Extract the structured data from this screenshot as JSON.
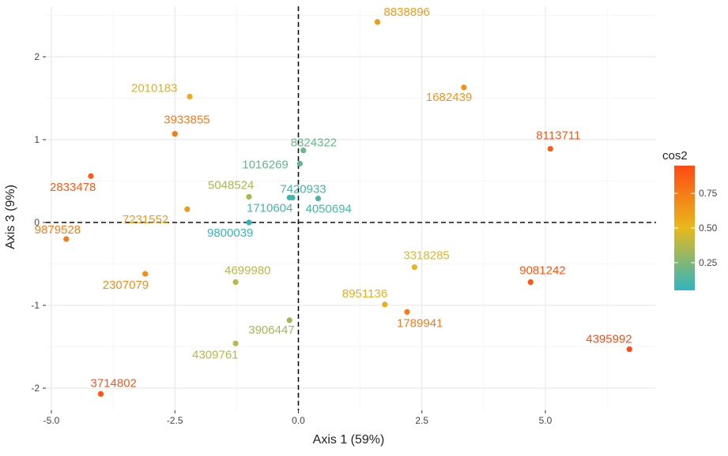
{
  "chart_data": {
    "type": "scatter",
    "title": "",
    "xlabel": "Axis 1 (59%)",
    "ylabel": "Axis 3 (9%)",
    "xlim": [
      -5.0,
      7.0
    ],
    "ylim": [
      -2.2,
      2.55
    ],
    "x_ticks": [
      -5.0,
      -2.5,
      0.0,
      2.5,
      5.0
    ],
    "x_tick_labels": [
      "-5.0",
      "-2.5",
      "0.0",
      "2.5",
      "5.0"
    ],
    "y_ticks": [
      -2,
      -1,
      0,
      1,
      2
    ],
    "y_tick_labels": [
      "-2",
      "-1",
      "0",
      "1",
      "2"
    ],
    "grid": true,
    "reference_lines": {
      "x": 0,
      "y": 0,
      "style": "dashed"
    },
    "color_scale": {
      "title": "cos2",
      "ticks": [
        0.25,
        0.5,
        0.75
      ],
      "tick_labels": [
        "0.25",
        "0.50",
        "0.75"
      ],
      "colors": [
        "#2eb5bf",
        "#e8b91c",
        "#ff4a14"
      ],
      "position": "right"
    },
    "points": [
      {
        "label": "8838896",
        "x": 1.6,
        "y": 2.42,
        "cos2": 0.62
      },
      {
        "label": "1682439",
        "x": 3.35,
        "y": 1.63,
        "cos2": 0.65
      },
      {
        "label": "2010183",
        "x": -2.2,
        "y": 1.52,
        "cos2": 0.55
      },
      {
        "label": "3933855",
        "x": -2.5,
        "y": 1.07,
        "cos2": 0.75
      },
      {
        "label": "8113711",
        "x": 5.1,
        "y": 0.89,
        "cos2": 0.88
      },
      {
        "label": "8324322",
        "x": 0.1,
        "y": 0.87,
        "cos2": 0.2
      },
      {
        "label": "1016269",
        "x": 0.03,
        "y": 0.71,
        "cos2": 0.18
      },
      {
        "label": "2833478",
        "x": -4.2,
        "y": 0.56,
        "cos2": 0.88
      },
      {
        "label": "5048524",
        "x": -1.0,
        "y": 0.31,
        "cos2": 0.35
      },
      {
        "label": "7420933",
        "x": -0.18,
        "y": 0.3,
        "cos2": 0.1
      },
      {
        "label": "1710604",
        "x": -0.12,
        "y": 0.3,
        "cos2": 0.1
      },
      {
        "label": "4050694",
        "x": 0.4,
        "y": 0.29,
        "cos2": 0.12
      },
      {
        "label": "7231552",
        "x": -2.25,
        "y": 0.16,
        "cos2": 0.62
      },
      {
        "label": "9800039",
        "x": -1.0,
        "y": 0.0,
        "cos2": 0.06
      },
      {
        "label": "9879528",
        "x": -4.7,
        "y": -0.2,
        "cos2": 0.75
      },
      {
        "label": "3318285",
        "x": 2.35,
        "y": -0.54,
        "cos2": 0.52
      },
      {
        "label": "2307079",
        "x": -3.1,
        "y": -0.62,
        "cos2": 0.68
      },
      {
        "label": "9081242",
        "x": 4.7,
        "y": -0.72,
        "cos2": 0.9
      },
      {
        "label": "4699980",
        "x": -1.27,
        "y": -0.72,
        "cos2": 0.38
      },
      {
        "label": "8951136",
        "x": 1.75,
        "y": -0.99,
        "cos2": 0.55
      },
      {
        "label": "1789941",
        "x": 2.2,
        "y": -1.08,
        "cos2": 0.75
      },
      {
        "label": "3906447",
        "x": -0.18,
        "y": -1.18,
        "cos2": 0.33
      },
      {
        "label": "4309761",
        "x": -1.27,
        "y": -1.46,
        "cos2": 0.38
      },
      {
        "label": "4395992",
        "x": 6.7,
        "y": -1.53,
        "cos2": 0.95
      },
      {
        "label": "3714802",
        "x": -4.0,
        "y": -2.07,
        "cos2": 0.9
      }
    ]
  }
}
